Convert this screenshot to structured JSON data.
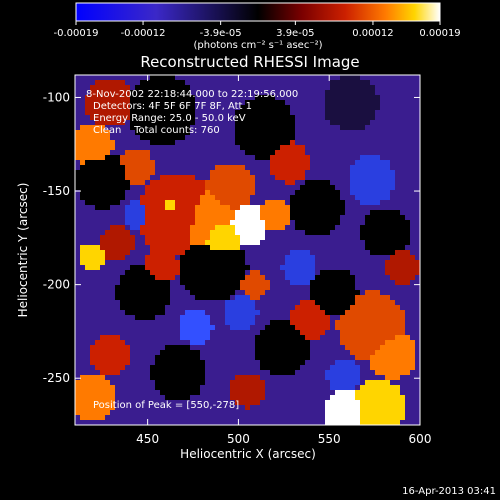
{
  "colorbar": {
    "ticks": [
      -0.00019,
      -0.00012,
      -3.9e-05,
      3.9e-05,
      0.00012,
      0.00019
    ],
    "tick_labels": [
      "-0.00019",
      "-0.00012",
      "-3.9e-05",
      "3.9e-05",
      "0.00012",
      "0.00019"
    ],
    "units_label": "(photons cm⁻² s⁻¹ asec⁻²)",
    "range": [
      -0.00019,
      0.00019
    ],
    "colors": [
      "#0000ff",
      "#3b28c8",
      "#000000",
      "#7a0000",
      "#cc2000",
      "#ff7a00",
      "#ffd500",
      "#ffffff"
    ]
  },
  "chart_data": {
    "type": "heatmap",
    "title": "Reconstructed RHESSI Image",
    "xlabel": "Heliocentric X (arcsec)",
    "ylabel": "Heliocentric Y (arcsec)",
    "xlim": [
      410,
      600
    ],
    "ylim": [
      -275,
      -88
    ],
    "xticks": [
      450,
      500,
      550,
      600
    ],
    "yticks": [
      -100,
      -150,
      -200,
      -250
    ],
    "peak": {
      "x": 550,
      "y": -278
    }
  },
  "info": {
    "line1": "8-Nov-2002 22:18:44.000 to 22:19:56.000",
    "line2": "Detectors: 4F 5F 6F 7F 8F, Att 1",
    "line3": "Energy Range: 25.0 - 50.0 keV",
    "line4": "Clean    Total counts: 760",
    "peak_text": "Position of Peak = [550,-278]"
  },
  "timestamp": "16-Apr-2013 03:41"
}
